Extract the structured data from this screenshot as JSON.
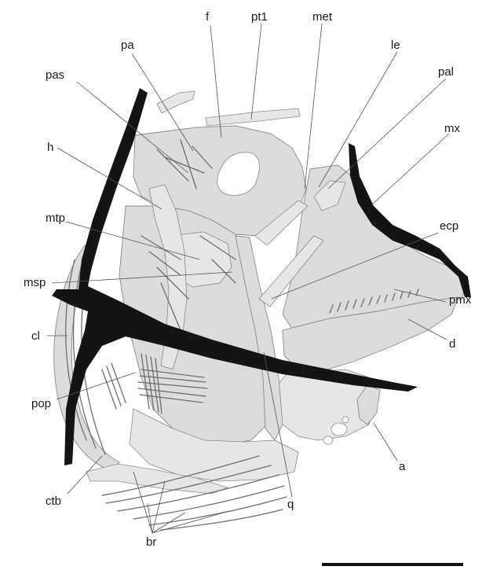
{
  "figure": {
    "labels": {
      "pa": "pa",
      "f": "f",
      "pt1": "pt1",
      "met": "met",
      "le": "le",
      "pal": "pal",
      "pas": "pas",
      "h": "h",
      "mx": "mx",
      "mtp": "mtp",
      "ecp": "ecp",
      "msp": "msp",
      "pmx": "pmx",
      "cl": "cl",
      "d": "d",
      "pop": "pop",
      "a": "a",
      "ctb": "ctb",
      "q": "q",
      "br": "br"
    },
    "colors": {
      "bone": "#dcdcdc",
      "outline": "#8a8a8a",
      "matrix_crack": "#141414",
      "label": "#1a1a1a"
    },
    "scale_bar": "unlabeled"
  }
}
